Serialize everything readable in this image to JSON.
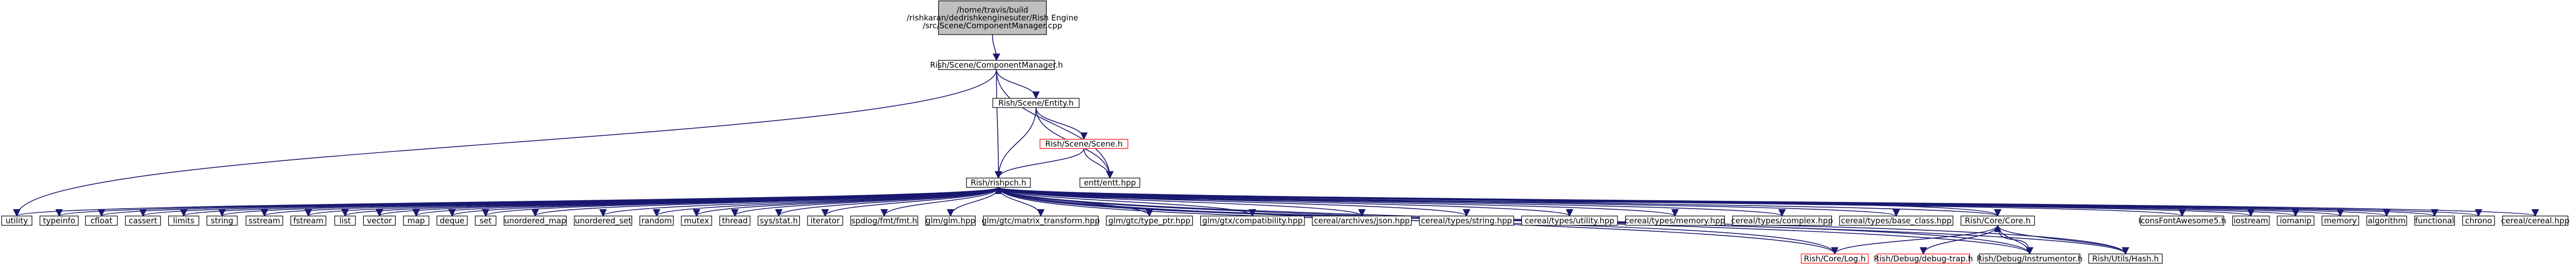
{
  "graph": {
    "nodes": {
      "root": {
        "lines": [
          "/home/travis/build",
          "/rishkaran/dedrishkenginesuter/Rish Engine",
          "/src/Scene/ComponentManager.cpp"
        ],
        "style": "root"
      },
      "cm": {
        "lines": [
          "Rish/Scene/ComponentManager.h"
        ],
        "style": "normal"
      },
      "entity": {
        "lines": [
          "Rish/Scene/Entity.h"
        ],
        "style": "normal"
      },
      "scene": {
        "lines": [
          "Rish/Scene/Scene.h"
        ],
        "style": "red"
      },
      "entt": {
        "lines": [
          "entt/entt.hpp"
        ],
        "style": "normal"
      },
      "rishpch": {
        "lines": [
          "Rish/rishpch.h"
        ],
        "style": "normal"
      },
      "utility": {
        "lines": [
          "utility"
        ],
        "style": "normal"
      },
      "typeinfo": {
        "lines": [
          "typeinfo"
        ],
        "style": "normal"
      },
      "cfloat": {
        "lines": [
          "cfloat"
        ],
        "style": "normal"
      },
      "cassert": {
        "lines": [
          "cassert"
        ],
        "style": "normal"
      },
      "limits": {
        "lines": [
          "limits"
        ],
        "style": "normal"
      },
      "string": {
        "lines": [
          "string"
        ],
        "style": "normal"
      },
      "sstream": {
        "lines": [
          "sstream"
        ],
        "style": "normal"
      },
      "fstream": {
        "lines": [
          "fstream"
        ],
        "style": "normal"
      },
      "list": {
        "lines": [
          "list"
        ],
        "style": "normal"
      },
      "vector": {
        "lines": [
          "vector"
        ],
        "style": "normal"
      },
      "map": {
        "lines": [
          "map"
        ],
        "style": "normal"
      },
      "deque": {
        "lines": [
          "deque"
        ],
        "style": "normal"
      },
      "set": {
        "lines": [
          "set"
        ],
        "style": "normal"
      },
      "umap": {
        "lines": [
          "unordered_map"
        ],
        "style": "normal"
      },
      "uset": {
        "lines": [
          "unordered_set"
        ],
        "style": "normal"
      },
      "random": {
        "lines": [
          "random"
        ],
        "style": "normal"
      },
      "mutex": {
        "lines": [
          "mutex"
        ],
        "style": "normal"
      },
      "thread": {
        "lines": [
          "thread"
        ],
        "style": "normal"
      },
      "sysstat": {
        "lines": [
          "sys/stat.h"
        ],
        "style": "normal"
      },
      "iterator": {
        "lines": [
          "iterator"
        ],
        "style": "normal"
      },
      "spdlog": {
        "lines": [
          "spdlog/fmt/fmt.h"
        ],
        "style": "normal"
      },
      "glm": {
        "lines": [
          "glm/glm.hpp"
        ],
        "style": "normal"
      },
      "glmmat": {
        "lines": [
          "glm/gtc/matrix_transform.hpp"
        ],
        "style": "normal"
      },
      "glmptr": {
        "lines": [
          "glm/gtc/type_ptr.hpp"
        ],
        "style": "normal"
      },
      "glmcompat": {
        "lines": [
          "glm/gtx/compatibility.hpp"
        ],
        "style": "normal"
      },
      "cjson": {
        "lines": [
          "cereal/archives/json.hpp"
        ],
        "style": "normal"
      },
      "cstring": {
        "lines": [
          "cereal/types/string.hpp"
        ],
        "style": "normal"
      },
      "cutility": {
        "lines": [
          "cereal/types/utility.hpp"
        ],
        "style": "normal"
      },
      "cmemory": {
        "lines": [
          "cereal/types/memory.hpp"
        ],
        "style": "normal"
      },
      "ccomplex": {
        "lines": [
          "cereal/types/complex.hpp"
        ],
        "style": "normal"
      },
      "cbase": {
        "lines": [
          "cereal/types/base_class.hpp"
        ],
        "style": "normal"
      },
      "core": {
        "lines": [
          "Rish/Core/Core.h"
        ],
        "style": "normal"
      },
      "log": {
        "lines": [
          "Rish/Core/Log.h"
        ],
        "style": "red"
      },
      "dbgtrap": {
        "lines": [
          "Rish/Debug/debug-trap.h"
        ],
        "style": "red"
      },
      "instr": {
        "lines": [
          "Rish/Debug/Instrumentor.h"
        ],
        "style": "normal"
      },
      "hash": {
        "lines": [
          "Rish/Utils/Hash.h"
        ],
        "style": "normal"
      },
      "iconfont": {
        "lines": [
          "IconsFontAwesome5.h"
        ],
        "style": "normal"
      },
      "iostream": {
        "lines": [
          "iostream"
        ],
        "style": "normal"
      },
      "iomanip": {
        "lines": [
          "iomanip"
        ],
        "style": "normal"
      },
      "memory": {
        "lines": [
          "memory"
        ],
        "style": "normal"
      },
      "algorithm": {
        "lines": [
          "algorithm"
        ],
        "style": "normal"
      },
      "functional": {
        "lines": [
          "functional"
        ],
        "style": "normal"
      },
      "chrono": {
        "lines": [
          "chrono"
        ],
        "style": "normal"
      },
      "cereal": {
        "lines": [
          "cereal/cereal.hpp"
        ],
        "style": "normal"
      }
    },
    "edges": [
      [
        "root",
        "cm"
      ],
      [
        "cm",
        "entity"
      ],
      [
        "cm",
        "rishpch"
      ],
      [
        "cm",
        "entt"
      ],
      [
        "cm",
        "utility"
      ],
      [
        "entity",
        "scene"
      ],
      [
        "entity",
        "rishpch"
      ],
      [
        "entity",
        "entt"
      ],
      [
        "scene",
        "rishpch"
      ],
      [
        "scene",
        "entt"
      ],
      [
        "rishpch",
        "utility"
      ],
      [
        "rishpch",
        "typeinfo"
      ],
      [
        "rishpch",
        "cfloat"
      ],
      [
        "rishpch",
        "cassert"
      ],
      [
        "rishpch",
        "limits"
      ],
      [
        "rishpch",
        "string"
      ],
      [
        "rishpch",
        "sstream"
      ],
      [
        "rishpch",
        "fstream"
      ],
      [
        "rishpch",
        "list"
      ],
      [
        "rishpch",
        "vector"
      ],
      [
        "rishpch",
        "map"
      ],
      [
        "rishpch",
        "deque"
      ],
      [
        "rishpch",
        "set"
      ],
      [
        "rishpch",
        "umap"
      ],
      [
        "rishpch",
        "uset"
      ],
      [
        "rishpch",
        "random"
      ],
      [
        "rishpch",
        "mutex"
      ],
      [
        "rishpch",
        "thread"
      ],
      [
        "rishpch",
        "sysstat"
      ],
      [
        "rishpch",
        "iterator"
      ],
      [
        "rishpch",
        "spdlog"
      ],
      [
        "rishpch",
        "glm"
      ],
      [
        "rishpch",
        "glmmat"
      ],
      [
        "rishpch",
        "glmptr"
      ],
      [
        "rishpch",
        "glmcompat"
      ],
      [
        "rishpch",
        "cjson"
      ],
      [
        "rishpch",
        "cstring"
      ],
      [
        "rishpch",
        "cutility"
      ],
      [
        "rishpch",
        "cmemory"
      ],
      [
        "rishpch",
        "ccomplex"
      ],
      [
        "rishpch",
        "cbase"
      ],
      [
        "rishpch",
        "core"
      ],
      [
        "rishpch",
        "log"
      ],
      [
        "rishpch",
        "instr"
      ],
      [
        "rishpch",
        "hash"
      ],
      [
        "rishpch",
        "iconfont"
      ],
      [
        "rishpch",
        "iostream"
      ],
      [
        "rishpch",
        "iomanip"
      ],
      [
        "rishpch",
        "memory"
      ],
      [
        "rishpch",
        "algorithm"
      ],
      [
        "rishpch",
        "functional"
      ],
      [
        "rishpch",
        "chrono"
      ],
      [
        "rishpch",
        "cereal"
      ],
      [
        "core",
        "log"
      ],
      [
        "core",
        "dbgtrap"
      ],
      [
        "core",
        "instr"
      ],
      [
        "core",
        "hash"
      ],
      [
        "core",
        "rishpch"
      ],
      [
        "log",
        "rishpch"
      ],
      [
        "instr",
        "core"
      ],
      [
        "instr",
        "rishpch"
      ],
      [
        "hash",
        "rishpch"
      ]
    ]
  },
  "colors": {
    "edge": "#191970",
    "root_fill": "#bfbfbf",
    "node_border": "#000000",
    "red_border": "#ff0000",
    "node_fill": "#ffffff"
  }
}
